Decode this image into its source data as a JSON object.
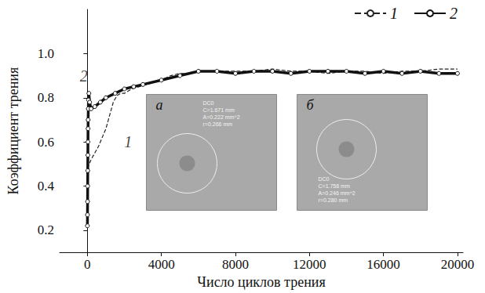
{
  "chart_data": {
    "type": "line",
    "x_label": "Число циклов трения",
    "y_label": "Коэффициент трения",
    "xlim": [
      -1500,
      20300
    ],
    "xticks": [
      0,
      4000,
      8000,
      12000,
      16000,
      20000
    ],
    "ylim": [
      0.1,
      1.2
    ],
    "yticks": [
      0.2,
      0.4,
      0.6,
      0.8,
      {
        "value": 1.0,
        "label": "1.0"
      }
    ],
    "grid": false,
    "legend": "upper right",
    "series": [
      {
        "name": "1",
        "color": "#222222",
        "line_style": "dashed",
        "marker": "none",
        "x": [
          0,
          100,
          200,
          400,
          600,
          800,
          1000,
          1200,
          1400,
          1600,
          1800,
          2000,
          2400,
          2800,
          3200,
          3600,
          4000,
          4500,
          5000,
          5500,
          6000,
          7000,
          8000,
          9000,
          10000,
          11000,
          12000,
          13000,
          14000,
          15000,
          16000,
          17000,
          18000,
          19000,
          20000
        ],
        "values": [
          0.48,
          0.5,
          0.52,
          0.55,
          0.58,
          0.62,
          0.66,
          0.72,
          0.78,
          0.81,
          0.82,
          0.82,
          0.84,
          0.85,
          0.86,
          0.87,
          0.88,
          0.9,
          0.91,
          0.91,
          0.92,
          0.92,
          0.92,
          0.92,
          0.93,
          0.92,
          0.92,
          0.91,
          0.92,
          0.92,
          0.91,
          0.92,
          0.92,
          0.93,
          0.93
        ]
      },
      {
        "name": "2",
        "color": "#111111",
        "line_style": "solid",
        "marker": "circle",
        "x": [
          0,
          5,
          10,
          15,
          20,
          25,
          30,
          35,
          40,
          50,
          60,
          80,
          120,
          200,
          400,
          700,
          1000,
          1500,
          2000,
          2500,
          3000,
          4000,
          5000,
          6000,
          7000,
          8000,
          9000,
          10000,
          11000,
          12000,
          13000,
          14000,
          15000,
          16000,
          17000,
          18000,
          19000,
          20000
        ],
        "values": [
          0.22,
          0.27,
          0.33,
          0.4,
          0.47,
          0.54,
          0.6,
          0.66,
          0.7,
          0.75,
          0.79,
          0.82,
          0.78,
          0.75,
          0.76,
          0.78,
          0.8,
          0.82,
          0.84,
          0.85,
          0.86,
          0.88,
          0.9,
          0.92,
          0.92,
          0.91,
          0.92,
          0.92,
          0.91,
          0.92,
          0.92,
          0.92,
          0.91,
          0.92,
          0.91,
          0.92,
          0.91,
          0.91
        ]
      }
    ],
    "annotations": [
      {
        "text": "2",
        "x": -200,
        "y": 0.9
      },
      {
        "text": "1",
        "x": 2200,
        "y": 0.6
      }
    ],
    "insets": [
      {
        "label": "а",
        "lines": [
          "DC0",
          "C=1.671 mm",
          "A=0.222 mm^2",
          "r=0.266 mm"
        ]
      },
      {
        "label": "б",
        "lines": [
          "DC0",
          "C=1.758 mm",
          "A=0.246 mm^2",
          "r=0.280 mm"
        ]
      }
    ]
  }
}
